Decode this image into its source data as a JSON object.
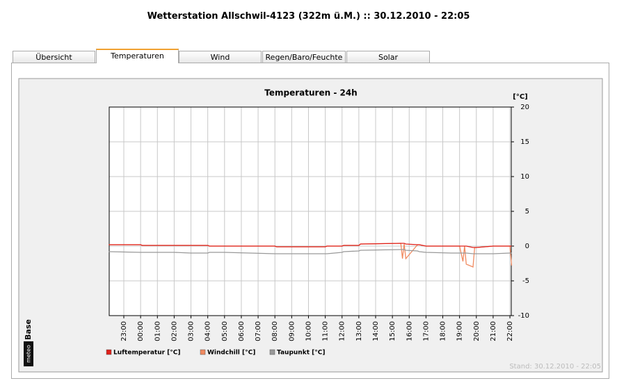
{
  "header": {
    "title": "Wetterstation Allschwil-4123 (322m ü.M.) :: 30.12.2010 - 22:05"
  },
  "tabs": [
    "Übersicht",
    "Temperaturen",
    "Wind",
    "Regen/Baro/Feuchte",
    "Solar"
  ],
  "active_tab": 1,
  "logo": {
    "left": "meteo",
    "right": "Base"
  },
  "stand": "Stand: 30.12.2010 - 22:05",
  "chart_data": {
    "type": "line",
    "title": "Temperaturen - 24h",
    "y_label": "[°C]",
    "x": [
      22.1,
      24.0,
      24.1,
      26.0,
      27.0,
      28.0,
      28.1,
      29.0,
      30.5,
      32.0,
      32.1,
      34.5,
      35.0,
      35.1,
      36.0,
      36.1,
      37.0,
      37.1,
      39.5,
      39.6,
      39.7,
      39.8,
      40.5,
      40.6,
      41.0,
      42.5,
      43.0,
      43.2,
      43.3,
      43.4,
      43.8,
      43.9,
      44.0,
      45.0,
      46.0,
      46.1
    ],
    "series": [
      {
        "name": "Luftemperatur [°C]",
        "color": "#e0201a",
        "values": [
          0.2,
          0.2,
          0.1,
          0.1,
          0.1,
          0.1,
          0.0,
          0.0,
          0.0,
          0.0,
          -0.1,
          -0.1,
          -0.1,
          0.0,
          0.0,
          0.1,
          0.1,
          0.3,
          0.4,
          0.4,
          0.4,
          0.3,
          0.2,
          0.2,
          0.0,
          0.0,
          0.0,
          0.0,
          0.0,
          0.0,
          -0.2,
          -0.2,
          -0.2,
          0.0,
          0.0,
          0.0
        ]
      },
      {
        "name": "Windchill [°C]",
        "color": "#f08a60",
        "values": [
          0.2,
          0.2,
          0.1,
          0.1,
          0.1,
          0.1,
          0.0,
          0.0,
          0.0,
          0.0,
          -0.1,
          -0.1,
          -0.1,
          0.0,
          0.0,
          0.1,
          0.1,
          0.3,
          0.4,
          -1.8,
          0.3,
          -1.8,
          0.2,
          0.2,
          0.0,
          0.0,
          0.0,
          -2.2,
          0.0,
          -2.6,
          -3.0,
          -0.2,
          -0.2,
          0.0,
          0.0,
          -2.8
        ]
      },
      {
        "name": "Taupunkt [°C]",
        "color": "#999999",
        "values": [
          -0.8,
          -0.9,
          -0.9,
          -0.9,
          -1.0,
          -1.0,
          -0.9,
          -0.9,
          -1.0,
          -1.1,
          -1.1,
          -1.1,
          -1.1,
          -1.1,
          -0.9,
          -0.8,
          -0.7,
          -0.6,
          -0.5,
          -0.5,
          -0.5,
          -0.6,
          -0.7,
          -0.8,
          -0.9,
          -1.0,
          -1.0,
          -1.0,
          -1.0,
          -1.0,
          -1.1,
          -1.1,
          -1.1,
          -1.1,
          -1.0,
          -1.0
        ]
      }
    ],
    "xlim": [
      22.13,
      46.08
    ],
    "xticks": [
      {
        "value": 23,
        "label": "23:00"
      },
      {
        "value": 24,
        "label": "00:00"
      },
      {
        "value": 25,
        "label": "01:00"
      },
      {
        "value": 26,
        "label": "02:00"
      },
      {
        "value": 27,
        "label": "03:00"
      },
      {
        "value": 28,
        "label": "04:00"
      },
      {
        "value": 29,
        "label": "05:00"
      },
      {
        "value": 30,
        "label": "06:00"
      },
      {
        "value": 31,
        "label": "07:00"
      },
      {
        "value": 32,
        "label": "08:00"
      },
      {
        "value": 33,
        "label": "09:00"
      },
      {
        "value": 34,
        "label": "10:00"
      },
      {
        "value": 35,
        "label": "11:00"
      },
      {
        "value": 36,
        "label": "12:00"
      },
      {
        "value": 37,
        "label": "13:00"
      },
      {
        "value": 38,
        "label": "14:00"
      },
      {
        "value": 39,
        "label": "15:00"
      },
      {
        "value": 40,
        "label": "16:00"
      },
      {
        "value": 41,
        "label": "17:00"
      },
      {
        "value": 42,
        "label": "18:00"
      },
      {
        "value": 43,
        "label": "19:00"
      },
      {
        "value": 44,
        "label": "20:00"
      },
      {
        "value": 45,
        "label": "21:00"
      },
      {
        "value": 46,
        "label": "22:00"
      }
    ],
    "ylim": [
      -10,
      20
    ],
    "yticks": [
      20,
      15,
      10,
      5,
      0,
      -5,
      -10
    ],
    "grid": true
  }
}
